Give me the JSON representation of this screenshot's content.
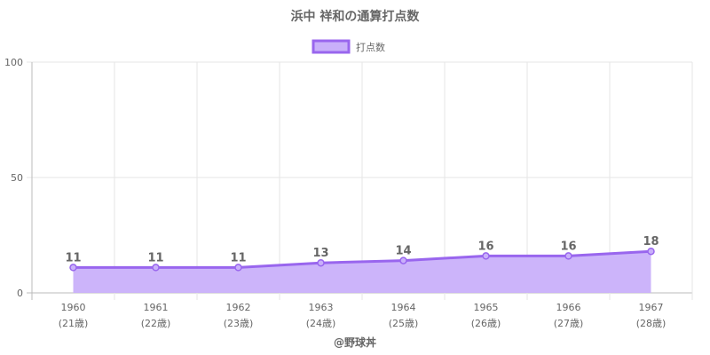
{
  "chart_data": {
    "type": "area",
    "title": "浜中 祥和の通算打点数",
    "x": [
      "1960",
      "1961",
      "1962",
      "1963",
      "1964",
      "1965",
      "1966",
      "1967"
    ],
    "x_sublabels": [
      "(21歳)",
      "(22歳)",
      "(23歳)",
      "(24歳)",
      "(25歳)",
      "(26歳)",
      "(27歳)",
      "(28歳)"
    ],
    "series": [
      {
        "name": "打点数",
        "values": [
          11,
          11,
          11,
          13,
          14,
          16,
          16,
          18
        ]
      }
    ],
    "ylim": [
      0,
      100
    ],
    "yticks": [
      0,
      50,
      100
    ],
    "grid": true,
    "legend": "top",
    "colors": {
      "line": "#9966ee",
      "fill": "#c9b0fa",
      "grid": "#e6e6e6",
      "axis": "#bbbbbb"
    }
  },
  "footer": "@野球丼"
}
